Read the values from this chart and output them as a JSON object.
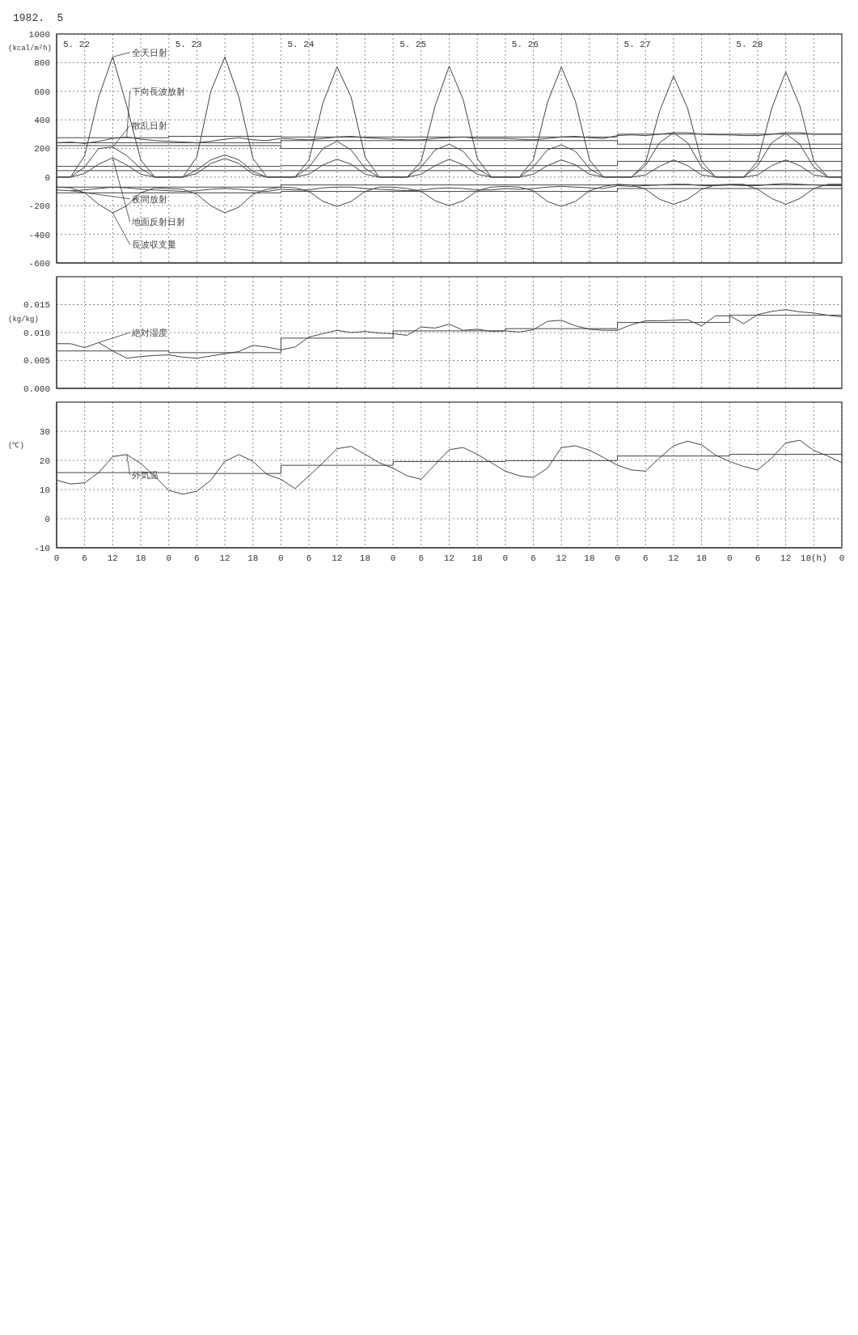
{
  "chart_data": [
    {
      "type": "line",
      "title": "1982.  5",
      "ylabel": "(kcal/m²h)",
      "xlim": [
        "1982-05-22T00:00",
        "1982-05-29T00:00"
      ],
      "ylim": [
        -600,
        1000
      ],
      "yticks": [
        -600,
        -400,
        -200,
        0,
        200,
        400,
        600,
        800,
        1000
      ],
      "xticks": [
        "1982-05-22T06:00",
        "1982-05-22T12:00",
        "1982-05-22T18:00",
        "1982-05-23T00:00",
        "1982-05-23T06:00",
        "1982-05-23T12:00",
        "1982-05-23T18:00",
        "1982-05-24T00:00",
        "1982-05-24T06:00",
        "1982-05-24T12:00",
        "1982-05-24T18:00",
        "1982-05-25T00:00",
        "1982-05-25T06:00",
        "1982-05-25T12:00",
        "1982-05-25T18:00",
        "1982-05-26T00:00",
        "1982-05-26T06:00",
        "1982-05-26T12:00",
        "1982-05-26T18:00",
        "1982-05-27T00:00",
        "1982-05-27T06:00",
        "1982-05-27T12:00",
        "1982-05-27T18:00",
        "1982-05-28T00:00",
        "1982-05-28T06:00",
        "1982-05-28T12:00",
        "1982-05-28T18:00"
      ],
      "tick_labels": "y",
      "grid": true,
      "x": [
        "1982-05-22T00:00",
        "1982-05-22T03:00",
        "1982-05-22T06:00",
        "1982-05-22T09:00",
        "1982-05-22T12:00",
        "1982-05-22T15:00",
        "1982-05-22T18:00",
        "1982-05-22T21:00",
        "1982-05-23T00:00",
        "1982-05-23T03:00",
        "1982-05-23T06:00",
        "1982-05-23T09:00",
        "1982-05-23T12:00",
        "1982-05-23T15:00",
        "1982-05-23T18:00",
        "1982-05-23T21:00",
        "1982-05-24T00:00",
        "1982-05-24T03:00",
        "1982-05-24T06:00",
        "1982-05-24T09:00",
        "1982-05-24T12:00",
        "1982-05-24T15:00",
        "1982-05-24T18:00",
        "1982-05-24T21:00",
        "1982-05-25T00:00",
        "1982-05-25T03:00",
        "1982-05-25T06:00",
        "1982-05-25T09:00",
        "1982-05-25T12:00",
        "1982-05-25T15:00",
        "1982-05-25T18:00",
        "1982-05-25T21:00",
        "1982-05-26T00:00",
        "1982-05-26T03:00",
        "1982-05-26T06:00",
        "1982-05-26T09:00",
        "1982-05-26T12:00",
        "1982-05-26T15:00",
        "1982-05-26T18:00",
        "1982-05-26T21:00",
        "1982-05-27T00:00",
        "1982-05-27T03:00",
        "1982-05-27T06:00",
        "1982-05-27T09:00",
        "1982-05-27T12:00",
        "1982-05-27T15:00",
        "1982-05-27T18:00",
        "1982-05-27T21:00",
        "1982-05-28T00:00",
        "1982-05-28T03:00",
        "1982-05-28T06:00",
        "1982-05-28T09:00",
        "1982-05-28T12:00",
        "1982-05-28T15:00",
        "1982-05-28T18:00",
        "1982-05-28T21:00",
        "1982-05-29T00:00"
      ],
      "series": [
        {
          "name": "全天日射",
          "color": "#444444",
          "values": [
            0,
            0,
            150,
            560,
            840,
            500,
            120,
            0,
            0,
            0,
            140,
            600,
            840,
            560,
            130,
            0,
            0,
            0,
            120,
            520,
            770,
            560,
            140,
            0,
            0,
            0,
            110,
            500,
            775,
            540,
            130,
            0,
            0,
            0,
            120,
            520,
            770,
            530,
            120,
            0,
            0,
            0,
            100,
            460,
            705,
            480,
            110,
            0,
            0,
            0,
            110,
            480,
            735,
            500,
            110,
            0,
            0
          ]
        },
        {
          "name": "下向長波放射",
          "color": "#444444",
          "values": [
            240,
            245,
            235,
            250,
            270,
            280,
            265,
            255,
            250,
            245,
            240,
            250,
            265,
            275,
            260,
            255,
            270,
            265,
            260,
            270,
            280,
            285,
            275,
            270,
            265,
            260,
            260,
            270,
            275,
            280,
            270,
            270,
            270,
            265,
            260,
            270,
            280,
            285,
            275,
            270,
            290,
            295,
            290,
            300,
            310,
            310,
            300,
            295,
            295,
            290,
            290,
            300,
            310,
            310,
            300,
            300,
            300
          ]
        },
        {
          "name": "散乱日射",
          "color": "#444444",
          "values": [
            0,
            0,
            70,
            200,
            210,
            150,
            60,
            0,
            0,
            0,
            50,
            120,
            155,
            120,
            40,
            0,
            0,
            0,
            70,
            200,
            250,
            190,
            60,
            0,
            0,
            0,
            70,
            190,
            230,
            180,
            60,
            0,
            0,
            0,
            70,
            190,
            225,
            180,
            60,
            0,
            0,
            0,
            80,
            240,
            310,
            240,
            70,
            0,
            0,
            0,
            80,
            240,
            305,
            230,
            70,
            0,
            0
          ]
        },
        {
          "name": "地面反射日射",
          "color": "#444444",
          "values": [
            0,
            0,
            25,
            90,
            135,
            85,
            20,
            0,
            0,
            0,
            25,
            95,
            130,
            95,
            20,
            0,
            0,
            0,
            20,
            85,
            125,
            90,
            20,
            0,
            0,
            0,
            20,
            80,
            125,
            85,
            20,
            0,
            0,
            0,
            20,
            80,
            120,
            85,
            20,
            0,
            0,
            0,
            15,
            75,
            120,
            80,
            15,
            0,
            0,
            0,
            15,
            80,
            120,
            80,
            15,
            0,
            0
          ]
        },
        {
          "name": "夜間放射",
          "color": "#444444",
          "values": [
            -90,
            -95,
            -90,
            -80,
            -70,
            -75,
            -85,
            -90,
            -95,
            -100,
            -95,
            -85,
            -80,
            -85,
            -95,
            -100,
            -85,
            -90,
            -90,
            -75,
            -70,
            -70,
            -80,
            -85,
            -90,
            -95,
            -90,
            -80,
            -75,
            -80,
            -90,
            -90,
            -80,
            -85,
            -80,
            -70,
            -65,
            -70,
            -75,
            -80,
            -60,
            -65,
            -60,
            -55,
            -50,
            -50,
            -60,
            -60,
            -55,
            -60,
            -60,
            -50,
            -45,
            -50,
            -55,
            -60,
            -60
          ]
        },
        {
          "name": "長波収支量",
          "color": "#444444",
          "values": [
            -70,
            -75,
            -110,
            -190,
            -250,
            -200,
            -110,
            -75,
            -80,
            -85,
            -120,
            -200,
            -250,
            -210,
            -120,
            -85,
            -70,
            -75,
            -100,
            -170,
            -205,
            -170,
            -100,
            -70,
            -70,
            -80,
            -100,
            -165,
            -200,
            -165,
            -95,
            -70,
            -65,
            -70,
            -95,
            -170,
            -205,
            -170,
            -95,
            -65,
            -50,
            -55,
            -85,
            -155,
            -190,
            -155,
            -85,
            -55,
            -50,
            -50,
            -85,
            -150,
            -190,
            -150,
            -80,
            -50,
            -50
          ]
        },
        {
          "type": "step",
          "color": "#444444",
          "x": [
            "1982-05-22T00:00",
            "1982-05-23T00:00",
            "1982-05-24T00:00",
            "1982-05-25T00:00",
            "1982-05-26T00:00",
            "1982-05-27T00:00",
            "1982-05-28T00:00",
            "1982-05-29T00:00"
          ],
          "values": [
            275,
            285,
            280,
            280,
            280,
            300,
            300,
            300
          ]
        },
        {
          "type": "step",
          "color": "#444444",
          "x": [
            "1982-05-22T00:00",
            "1982-05-23T00:00",
            "1982-05-24T00:00",
            "1982-05-25T00:00",
            "1982-05-26T00:00",
            "1982-05-27T00:00",
            "1982-05-28T00:00",
            "1982-05-29T00:00"
          ],
          "values": [
            240,
            240,
            255,
            255,
            255,
            230,
            230,
            230
          ]
        },
        {
          "type": "step",
          "color": "#444444",
          "x": [
            "1982-05-22T00:00",
            "1982-05-23T00:00",
            "1982-05-24T00:00",
            "1982-05-25T00:00",
            "1982-05-26T00:00",
            "1982-05-27T00:00",
            "1982-05-28T00:00",
            "1982-05-29T00:00"
          ],
          "values": [
            220,
            220,
            200,
            200,
            200,
            200,
            200,
            200
          ]
        },
        {
          "type": "step",
          "color": "#444444",
          "x": [
            "1982-05-22T00:00",
            "1982-05-23T00:00",
            "1982-05-24T00:00",
            "1982-05-25T00:00",
            "1982-05-26T00:00",
            "1982-05-27T00:00",
            "1982-05-28T00:00",
            "1982-05-29T00:00"
          ],
          "values": [
            75,
            75,
            80,
            80,
            80,
            110,
            110,
            110
          ]
        },
        {
          "type": "step",
          "color": "#444444",
          "x": [
            "1982-05-22T00:00",
            "1982-05-23T00:00",
            "1982-05-24T00:00",
            "1982-05-25T00:00",
            "1982-05-26T00:00",
            "1982-05-27T00:00",
            "1982-05-28T00:00",
            "1982-05-29T00:00"
          ],
          "values": [
            45,
            45,
            45,
            45,
            45,
            45,
            45,
            45
          ]
        },
        {
          "type": "step",
          "color": "#444444",
          "x": [
            "1982-05-22T00:00",
            "1982-05-23T00:00",
            "1982-05-24T00:00",
            "1982-05-25T00:00",
            "1982-05-26T00:00",
            "1982-05-27T00:00",
            "1982-05-28T00:00",
            "1982-05-29T00:00"
          ],
          "values": [
            -70,
            -70,
            -55,
            -55,
            -55,
            -55,
            -55,
            -55
          ]
        },
        {
          "type": "step",
          "color": "#444444",
          "x": [
            "1982-05-22T00:00",
            "1982-05-23T00:00",
            "1982-05-24T00:00",
            "1982-05-25T00:00",
            "1982-05-26T00:00",
            "1982-05-27T00:00",
            "1982-05-28T00:00",
            "1982-05-29T00:00"
          ],
          "values": [
            -110,
            -110,
            -100,
            -100,
            -100,
            -80,
            -80,
            -80
          ]
        }
      ],
      "annotations": [
        "5. 22",
        "5. 23",
        "5. 24",
        "5. 25",
        "5. 26",
        "5. 27",
        "5. 28"
      ]
    },
    {
      "type": "line",
      "ylabel": "(kg/kg)",
      "xlim": [
        "1982-05-22T00:00",
        "1982-05-29T00:00"
      ],
      "ylim": [
        0,
        0.02
      ],
      "yticks": [
        {
          "value": 0,
          "label": "0.000"
        },
        0.005,
        {
          "value": 0.01,
          "label": "0.010"
        },
        0.015
      ],
      "xticks": [
        "1982-05-22T06:00",
        "1982-05-22T12:00",
        "1982-05-22T18:00",
        "1982-05-23T00:00",
        "1982-05-23T06:00",
        "1982-05-23T12:00",
        "1982-05-23T18:00",
        "1982-05-24T00:00",
        "1982-05-24T06:00",
        "1982-05-24T12:00",
        "1982-05-24T18:00",
        "1982-05-25T00:00",
        "1982-05-25T06:00",
        "1982-05-25T12:00",
        "1982-05-25T18:00",
        "1982-05-26T00:00",
        "1982-05-26T06:00",
        "1982-05-26T12:00",
        "1982-05-26T18:00",
        "1982-05-27T00:00",
        "1982-05-27T06:00",
        "1982-05-27T12:00",
        "1982-05-27T18:00",
        "1982-05-28T00:00",
        "1982-05-28T06:00",
        "1982-05-28T12:00",
        "1982-05-28T18:00"
      ],
      "tick_labels": "y",
      "grid": true,
      "x": [
        "1982-05-22T00:00",
        "1982-05-22T03:00",
        "1982-05-22T06:00",
        "1982-05-22T09:00",
        "1982-05-22T12:00",
        "1982-05-22T15:00",
        "1982-05-22T18:00",
        "1982-05-22T21:00",
        "1982-05-23T00:00",
        "1982-05-23T03:00",
        "1982-05-23T06:00",
        "1982-05-23T09:00",
        "1982-05-23T12:00",
        "1982-05-23T15:00",
        "1982-05-23T18:00",
        "1982-05-23T21:00",
        "1982-05-24T00:00",
        "1982-05-24T03:00",
        "1982-05-24T06:00",
        "1982-05-24T09:00",
        "1982-05-24T12:00",
        "1982-05-24T15:00",
        "1982-05-24T18:00",
        "1982-05-24T21:00",
        "1982-05-25T00:00",
        "1982-05-25T03:00",
        "1982-05-25T06:00",
        "1982-05-25T09:00",
        "1982-05-25T12:00",
        "1982-05-25T15:00",
        "1982-05-25T18:00",
        "1982-05-25T21:00",
        "1982-05-26T00:00",
        "1982-05-26T03:00",
        "1982-05-26T06:00",
        "1982-05-26T09:00",
        "1982-05-26T12:00",
        "1982-05-26T15:00",
        "1982-05-26T18:00",
        "1982-05-26T21:00",
        "1982-05-27T00:00",
        "1982-05-27T03:00",
        "1982-05-27T06:00",
        "1982-05-27T09:00",
        "1982-05-27T12:00",
        "1982-05-27T15:00",
        "1982-05-27T18:00",
        "1982-05-27T21:00",
        "1982-05-28T00:00",
        "1982-05-28T03:00",
        "1982-05-28T06:00",
        "1982-05-28T09:00",
        "1982-05-28T12:00",
        "1982-05-28T15:00",
        "1982-05-28T18:00",
        "1982-05-28T21:00",
        "1982-05-29T00:00"
      ],
      "series": [
        {
          "name": "絶対湿度",
          "color": "#444444",
          "values": [
            0.008,
            0.008,
            0.0073,
            0.0082,
            0.0067,
            0.0054,
            0.0057,
            0.0059,
            0.006,
            0.0056,
            0.0054,
            0.0058,
            0.0062,
            0.0066,
            0.0077,
            0.0074,
            0.0069,
            0.0074,
            0.0092,
            0.0098,
            0.0104,
            0.01,
            0.0102,
            0.0099,
            0.0098,
            0.0095,
            0.011,
            0.0108,
            0.0115,
            0.0104,
            0.0106,
            0.0102,
            0.0103,
            0.0101,
            0.0105,
            0.012,
            0.0122,
            0.0112,
            0.0106,
            0.0104,
            0.0104,
            0.0114,
            0.0121,
            0.0121,
            0.0122,
            0.0123,
            0.0112,
            0.013,
            0.013,
            0.0116,
            0.0132,
            0.0138,
            0.0141,
            0.0137,
            0.0135,
            0.0131,
            0.0128
          ]
        },
        {
          "type": "step",
          "color": "#444444",
          "x": [
            "1982-05-22T00:00",
            "1982-05-23T00:00",
            "1982-05-24T00:00",
            "1982-05-25T00:00",
            "1982-05-26T00:00",
            "1982-05-27T00:00",
            "1982-05-28T00:00",
            "1982-05-29T00:00"
          ],
          "values": [
            0.0067,
            0.0064,
            0.009,
            0.0103,
            0.0107,
            0.0118,
            0.0131,
            0.0131
          ]
        }
      ]
    },
    {
      "type": "line",
      "ylabel": "(℃)",
      "xlim": [
        "1982-05-22T00:00",
        "1982-05-29T00:00"
      ],
      "ylim": [
        -10,
        40
      ],
      "yticks": [
        -10,
        0,
        10,
        20,
        30
      ],
      "xticks": [
        {
          "value": "1982-05-22T00:00",
          "label": "0"
        },
        {
          "value": "1982-05-22T06:00",
          "label": "6"
        },
        {
          "value": "1982-05-22T12:00",
          "label": "12"
        },
        {
          "value": "1982-05-22T18:00",
          "label": "18"
        },
        {
          "value": "1982-05-23T00:00",
          "label": "0"
        },
        {
          "value": "1982-05-23T06:00",
          "label": "6"
        },
        {
          "value": "1982-05-23T12:00",
          "label": "12"
        },
        {
          "value": "1982-05-23T18:00",
          "label": "18"
        },
        {
          "value": "1982-05-24T00:00",
          "label": "0"
        },
        {
          "value": "1982-05-24T06:00",
          "label": "6"
        },
        {
          "value": "1982-05-24T12:00",
          "label": "12"
        },
        {
          "value": "1982-05-24T18:00",
          "label": "18"
        },
        {
          "value": "1982-05-25T00:00",
          "label": "0"
        },
        {
          "value": "1982-05-25T06:00",
          "label": "6"
        },
        {
          "value": "1982-05-25T12:00",
          "label": "12"
        },
        {
          "value": "1982-05-25T18:00",
          "label": "18"
        },
        {
          "value": "1982-05-26T00:00",
          "label": "0"
        },
        {
          "value": "1982-05-26T06:00",
          "label": "6"
        },
        {
          "value": "1982-05-26T12:00",
          "label": "12"
        },
        {
          "value": "1982-05-26T18:00",
          "label": "18"
        },
        {
          "value": "1982-05-27T00:00",
          "label": "0"
        },
        {
          "value": "1982-05-27T06:00",
          "label": "6"
        },
        {
          "value": "1982-05-27T12:00",
          "label": "12"
        },
        {
          "value": "1982-05-27T18:00",
          "label": "18"
        },
        {
          "value": "1982-05-28T00:00",
          "label": "0"
        },
        {
          "value": "1982-05-28T06:00",
          "label": "6"
        },
        {
          "value": "1982-05-28T12:00",
          "label": "12"
        },
        {
          "value": "1982-05-28T18:00",
          "label": "18(h)"
        },
        {
          "value": "1982-05-29T00:00",
          "label": "0"
        }
      ],
      "grid": true,
      "x": [
        "1982-05-22T00:00",
        "1982-05-22T03:00",
        "1982-05-22T06:00",
        "1982-05-22T09:00",
        "1982-05-22T12:00",
        "1982-05-22T15:00",
        "1982-05-22T18:00",
        "1982-05-22T21:00",
        "1982-05-23T00:00",
        "1982-05-23T03:00",
        "1982-05-23T06:00",
        "1982-05-23T09:00",
        "1982-05-23T12:00",
        "1982-05-23T15:00",
        "1982-05-23T18:00",
        "1982-05-23T21:00",
        "1982-05-24T00:00",
        "1982-05-24T03:00",
        "1982-05-24T06:00",
        "1982-05-24T09:00",
        "1982-05-24T12:00",
        "1982-05-24T15:00",
        "1982-05-24T18:00",
        "1982-05-24T21:00",
        "1982-05-25T00:00",
        "1982-05-25T03:00",
        "1982-05-25T06:00",
        "1982-05-25T09:00",
        "1982-05-25T12:00",
        "1982-05-25T15:00",
        "1982-05-25T18:00",
        "1982-05-25T21:00",
        "1982-05-26T00:00",
        "1982-05-26T03:00",
        "1982-05-26T06:00",
        "1982-05-26T09:00",
        "1982-05-26T12:00",
        "1982-05-26T15:00",
        "1982-05-26T18:00",
        "1982-05-26T21:00",
        "1982-05-27T00:00",
        "1982-05-27T03:00",
        "1982-05-27T06:00",
        "1982-05-27T09:00",
        "1982-05-27T12:00",
        "1982-05-27T15:00",
        "1982-05-27T18:00",
        "1982-05-27T21:00",
        "1982-05-28T00:00",
        "1982-05-28T03:00",
        "1982-05-28T06:00",
        "1982-05-28T09:00",
        "1982-05-28T12:00",
        "1982-05-28T15:00",
        "1982-05-28T18:00",
        "1982-05-28T21:00",
        "1982-05-29T00:00"
      ],
      "series": [
        {
          "name": "外気温",
          "color": "#444444",
          "values": [
            13.2,
            11.9,
            12.3,
            15.8,
            21.3,
            22.0,
            19.0,
            14.5,
            9.7,
            8.4,
            9.4,
            13.2,
            19.7,
            22.0,
            19.7,
            15.2,
            13.5,
            10.3,
            14.7,
            19.2,
            24.0,
            24.8,
            22.1,
            19.2,
            17.3,
            14.7,
            13.5,
            18.6,
            23.7,
            24.4,
            22.1,
            19.2,
            16.3,
            14.7,
            14.1,
            17.3,
            24.4,
            25.0,
            23.5,
            21.0,
            18.3,
            16.7,
            16.3,
            20.8,
            25.0,
            26.6,
            25.3,
            21.8,
            19.6,
            17.9,
            16.7,
            20.8,
            26.0,
            26.9,
            23.4,
            21.5,
            19.2
          ]
        },
        {
          "type": "step",
          "color": "#444444",
          "x": [
            "1982-05-22T00:00",
            "1982-05-23T00:00",
            "1982-05-24T00:00",
            "1982-05-25T00:00",
            "1982-05-26T00:00",
            "1982-05-27T00:00",
            "1982-05-28T00:00",
            "1982-05-29T00:00"
          ],
          "values": [
            15.8,
            15.5,
            18.3,
            19.6,
            19.9,
            21.5,
            22.1,
            22.1
          ]
        }
      ]
    }
  ]
}
